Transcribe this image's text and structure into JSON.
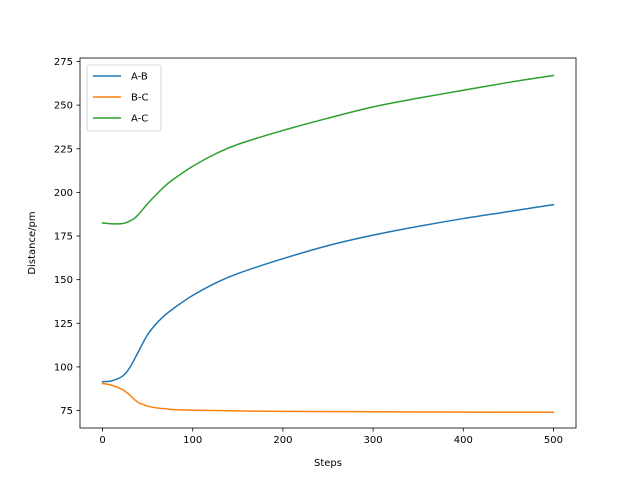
{
  "chart_data": {
    "type": "line",
    "title": "",
    "xlabel": "Steps",
    "ylabel": "Distance/pm",
    "xlim": [
      -25,
      525
    ],
    "ylim": [
      65,
      277
    ],
    "xticks": [
      0,
      100,
      200,
      300,
      400,
      500
    ],
    "yticks": [
      75,
      100,
      125,
      150,
      175,
      200,
      225,
      250,
      275
    ],
    "grid": false,
    "legend": "top-left",
    "series": [
      {
        "name": "A-B",
        "color": "#1f77b4",
        "x": [
          0,
          10,
          20,
          25,
          30,
          35,
          40,
          50,
          60,
          70,
          80,
          100,
          125,
          150,
          200,
          250,
          300,
          350,
          400,
          450,
          500
        ],
        "y": [
          91.5,
          92,
          94,
          96,
          99.5,
          104,
          109,
          118.5,
          125,
          130,
          134,
          141,
          148,
          153.5,
          162,
          169.5,
          175.5,
          180.5,
          185,
          189,
          193
        ]
      },
      {
        "name": "B-C",
        "color": "#ff7f0e",
        "x": [
          0,
          10,
          20,
          25,
          30,
          35,
          40,
          45,
          50,
          60,
          70,
          80,
          100,
          150,
          200,
          300,
          400,
          500
        ],
        "y": [
          90.5,
          89.5,
          87.5,
          86,
          84,
          81.5,
          79.5,
          78.5,
          77.5,
          76.5,
          76,
          75.5,
          75.2,
          74.8,
          74.5,
          74.3,
          74.1,
          74
        ]
      },
      {
        "name": "A-C",
        "color": "#2ca02c",
        "x": [
          0,
          10,
          20,
          25,
          30,
          35,
          40,
          50,
          60,
          70,
          80,
          100,
          125,
          150,
          200,
          250,
          300,
          350,
          400,
          450,
          500
        ],
        "y": [
          182.5,
          182,
          182,
          182.5,
          183.5,
          185,
          187.5,
          193.5,
          199,
          204,
          208,
          215,
          222,
          227.5,
          235.5,
          242.5,
          249,
          254,
          258.5,
          263,
          267
        ]
      }
    ]
  }
}
